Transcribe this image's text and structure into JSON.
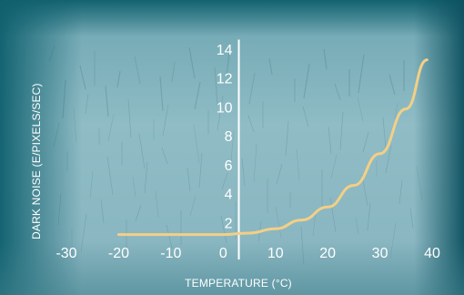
{
  "chart_data": {
    "type": "line",
    "title": "",
    "xlabel": "TEMPERATURE (°C)",
    "ylabel": "DARK NOISE (E/PIXELS/SEC)",
    "xlim": [
      -35,
      42
    ],
    "ylim": [
      0,
      15
    ],
    "x_ticks": [
      -30,
      -20,
      -10,
      0,
      10,
      20,
      30,
      40
    ],
    "y_ticks": [
      2,
      4,
      6,
      8,
      10,
      12,
      14
    ],
    "grid": false,
    "legend": "none",
    "series": [
      {
        "x": [
          -20,
          -10,
          0,
          5,
          10,
          15,
          20,
          25,
          30,
          35,
          39
        ],
        "values": [
          1.1,
          1.1,
          1.1,
          1.2,
          1.5,
          2.1,
          3.0,
          4.5,
          6.7,
          9.8,
          13.2
        ]
      }
    ],
    "colors": {
      "line": "#f3cf86",
      "axis": "#ffffff",
      "text": "#ffffff",
      "background_light": "#8cb8c2",
      "background_dark": "#1f6f7c"
    }
  }
}
